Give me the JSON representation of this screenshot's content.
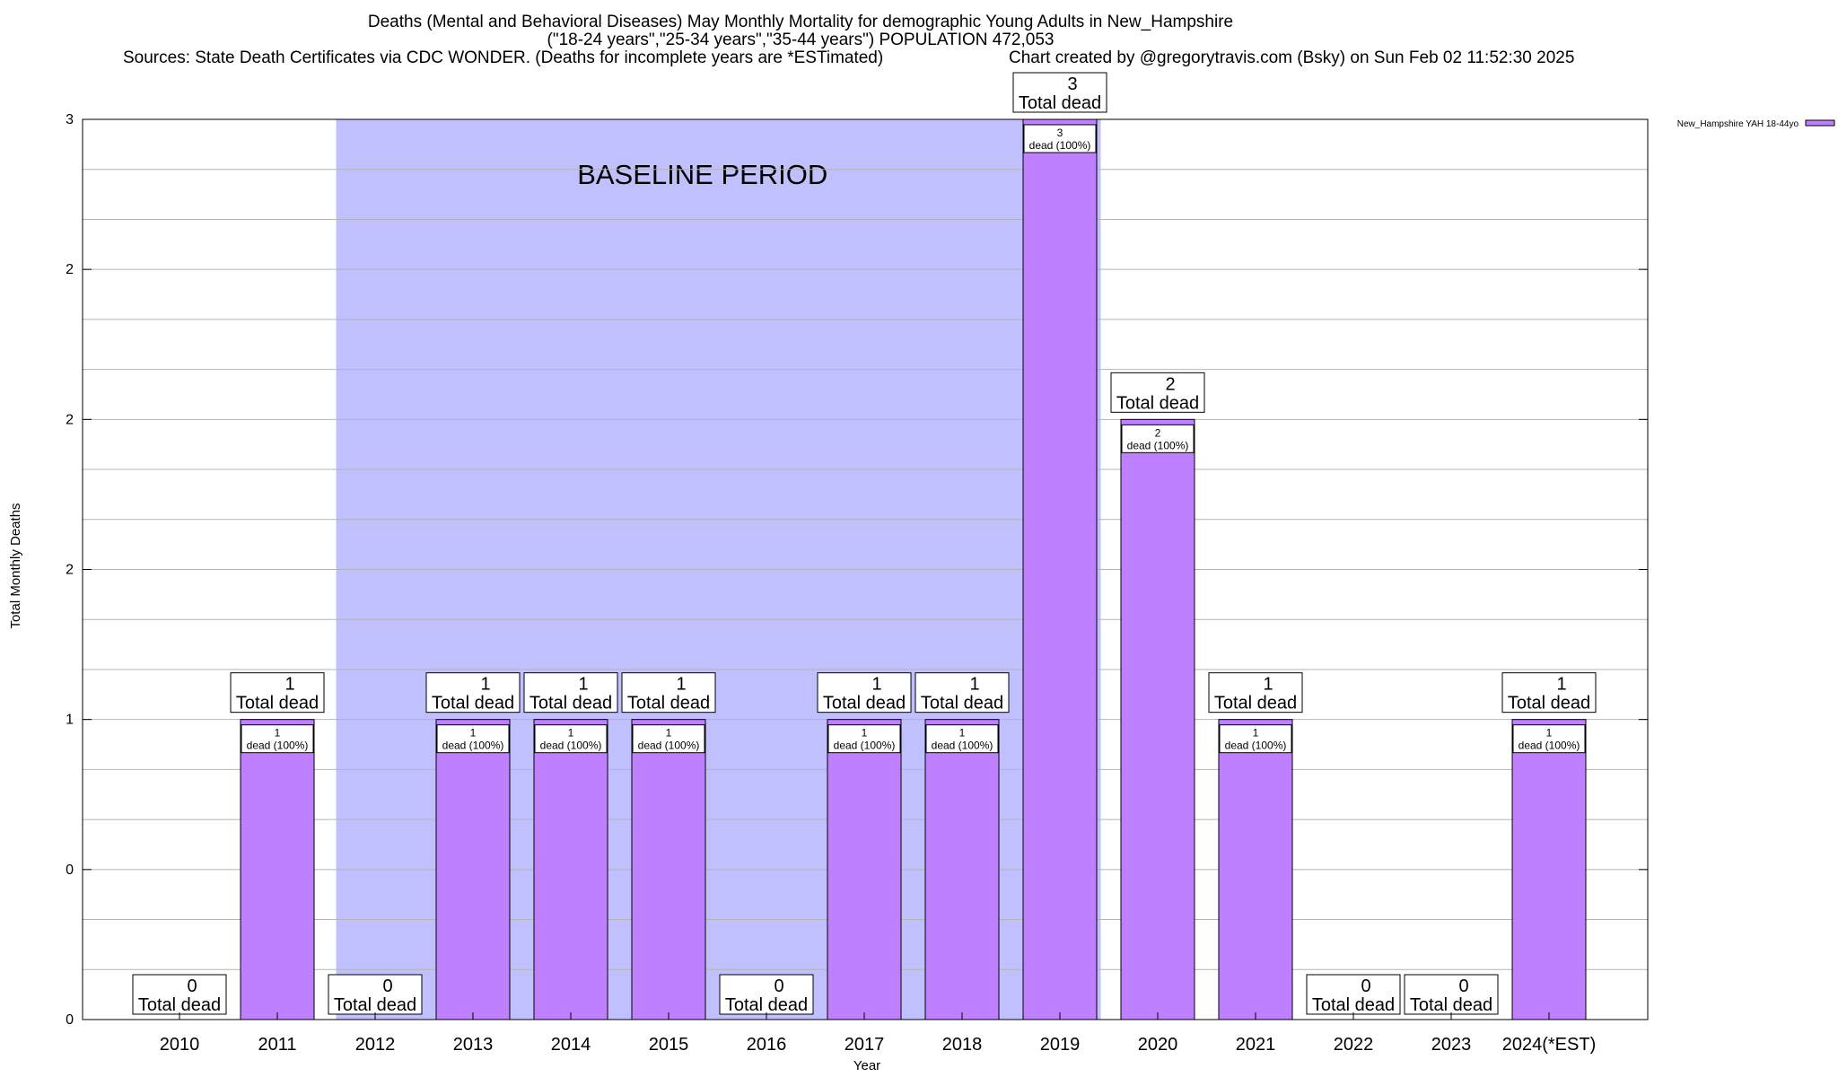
{
  "header": {
    "title_line1": "Deaths (Mental and Behavioral Diseases) May Monthly Mortality for demographic Young Adults in New_Hampshire",
    "title_line2": "(\"18-24 years\",\"25-34 years\",\"35-44 years\") POPULATION 472,053",
    "sources": "Sources: State Death Certificates via CDC WONDER. (Deaths for incomplete years are *ESTimated)",
    "credit": "Chart created by @gregorytravis.com (Bsky) on Sun Feb 02 11:52:30 2025"
  },
  "chart_data": {
    "type": "bar",
    "xlabel": "Year",
    "ylabel": "Total Monthly Deaths",
    "ylim": [
      0,
      3
    ],
    "y_ticks": [
      {
        "value": 0,
        "label": "0"
      },
      {
        "value": 0.5,
        "label": "0"
      },
      {
        "value": 1,
        "label": "1"
      },
      {
        "value": 1.5,
        "label": "2"
      },
      {
        "value": 2,
        "label": "2"
      },
      {
        "value": 2.5,
        "label": "2"
      },
      {
        "value": 3,
        "label": "3"
      }
    ],
    "categories": [
      "2010",
      "2011",
      "2012",
      "2013",
      "2014",
      "2015",
      "2016",
      "2017",
      "2018",
      "2019",
      "2020",
      "2021",
      "2022",
      "2023",
      "2024(*EST)"
    ],
    "values": [
      0,
      1,
      0,
      1,
      1,
      1,
      0,
      1,
      1,
      3,
      2,
      1,
      0,
      0,
      1
    ],
    "series": [
      {
        "name": "New_Hampshire YAH 18-44yo",
        "values": [
          0,
          1,
          0,
          1,
          1,
          1,
          0,
          1,
          1,
          3,
          2,
          1,
          0,
          0,
          1
        ],
        "color": "#bf80ff"
      }
    ],
    "total_label": "Total dead",
    "inner_label_suffix": "dead (100%)",
    "baseline": {
      "label": "BASELINE PERIOD",
      "from": "2012",
      "to": "2019",
      "color": "#c0c0ff"
    },
    "legend_position": "top-right",
    "grid": true,
    "colors": {
      "bar": "#bf80ff",
      "baseline": "#c0c0ff",
      "text": "#000000"
    }
  }
}
